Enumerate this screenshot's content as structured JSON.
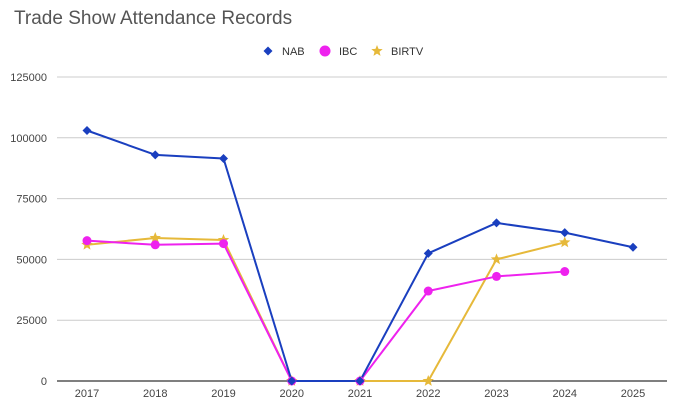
{
  "title": "Trade Show Attendance Records",
  "chart_data": {
    "type": "line",
    "title": "Trade Show Attendance Records",
    "xlabel": "",
    "ylabel": "",
    "x": [
      "2017",
      "2018",
      "2019",
      "2020",
      "2021",
      "2022",
      "2023",
      "2024",
      "2025"
    ],
    "ylim": [
      0,
      125000
    ],
    "yticks": [
      0,
      25000,
      50000,
      75000,
      100000,
      125000
    ],
    "grid": true,
    "legend_position": "top",
    "series": [
      {
        "name": "NAB",
        "color": "#1a3fbf",
        "marker": "diamond",
        "values": [
          103000,
          93000,
          91500,
          0,
          0,
          52500,
          65000,
          61000,
          55000
        ]
      },
      {
        "name": "IBC",
        "color": "#ee22ee",
        "marker": "circle",
        "values": [
          57700,
          56000,
          56500,
          0,
          0,
          37000,
          43000,
          45000,
          null
        ]
      },
      {
        "name": "BIRTV",
        "color": "#e6b93a",
        "marker": "star",
        "values": [
          56000,
          58800,
          58000,
          0,
          0,
          0,
          50000,
          57000,
          null
        ]
      }
    ]
  }
}
